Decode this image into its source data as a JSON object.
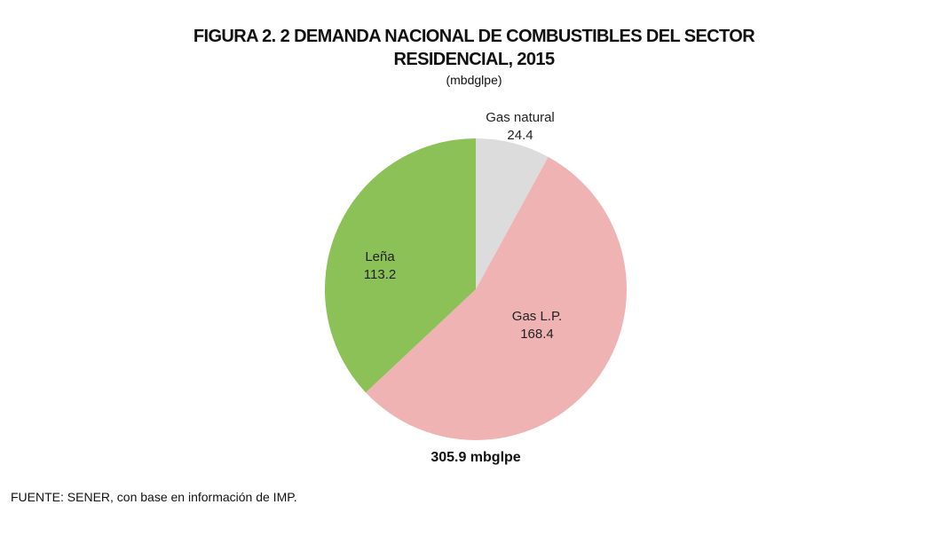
{
  "chart_data": {
    "type": "pie",
    "title_line1": "FIGURA 2. 2 DEMANDA NACIONAL DE COMBUSTIBLES DEL SECTOR",
    "title_line2": "RESIDENCIAL, 2015",
    "subtitle": "(mbdglpe)",
    "slices": [
      {
        "label": "Gas natural",
        "value": 24.4,
        "value_text": "24.4",
        "color": "#dcdcdc"
      },
      {
        "label": "Gas L.P.",
        "value": 168.4,
        "value_text": "168.4",
        "color": "#efb3b4"
      },
      {
        "label": "Leña",
        "value": 113.2,
        "value_text": "113.2",
        "color": "#8bc157"
      }
    ],
    "start_angle": "12 o'clock, clockwise",
    "total_label": "305.9 mbglpe",
    "source": "FUENTE: SENER, con base en información de IMP."
  }
}
